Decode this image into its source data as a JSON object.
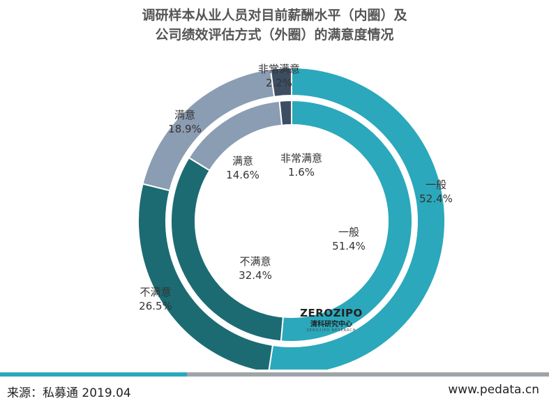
{
  "title_line1": "调研样本从业人员对目前薪酬水平（内圈）及",
  "title_line2": "公司绩效评估方式（外圈）的满意度情况",
  "footer": {
    "source": "来源：私募通 2019.04",
    "site": "www.pedata.cn"
  },
  "logo": {
    "main": "ZEROZIPO",
    "cn": "清科研究中心",
    "sub": "ZERO2IPO RESEARCH"
  },
  "colors": {
    "accent_bar": "#2aa8ba",
    "gray_bar": "#9ea4a8"
  },
  "chart_data": {
    "type": "donut",
    "title": "调研样本从业人员对目前薪酬水平（内圈）及公司绩效评估方式（外圈）的满意度情况",
    "rings": [
      {
        "name": "内圈",
        "slices": [
          {
            "label": "一般",
            "value": 51.4,
            "display": "51.4%",
            "color": "#2ba8bb"
          },
          {
            "label": "不满意",
            "value": 32.4,
            "display": "32.4%",
            "color": "#1c6b73"
          },
          {
            "label": "满意",
            "value": 14.6,
            "display": "14.6%",
            "color": "#8b9db2"
          },
          {
            "label": "非常满意",
            "value": 1.6,
            "display": "1.6%",
            "color": "#3d4e63"
          }
        ]
      },
      {
        "name": "外圈",
        "slices": [
          {
            "label": "一般",
            "value": 52.4,
            "display": "52.4%",
            "color": "#2ba8bb"
          },
          {
            "label": "不满意",
            "value": 26.5,
            "display": "26.5%",
            "color": "#1c6b73"
          },
          {
            "label": "满意",
            "value": 18.9,
            "display": "18.9%",
            "color": "#8b9db2"
          },
          {
            "label": "非常满意",
            "value": 2.2,
            "display": "2.2%",
            "color": "#3d4e63"
          }
        ]
      }
    ]
  }
}
